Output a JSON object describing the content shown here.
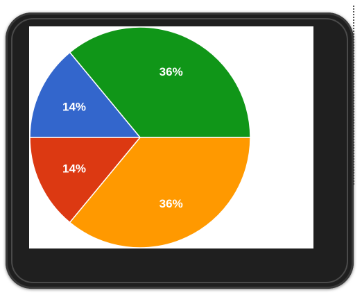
{
  "chart_data": {
    "type": "pie",
    "slices": [
      {
        "label": "36%",
        "value": 36,
        "color": "#109618"
      },
      {
        "label": "14%",
        "value": 14,
        "color": "#3366cc"
      },
      {
        "label": "14%",
        "value": 14,
        "color": "#dc3912"
      },
      {
        "label": "36%",
        "value": 36,
        "color": "#ff9900"
      }
    ],
    "legend": "none"
  }
}
